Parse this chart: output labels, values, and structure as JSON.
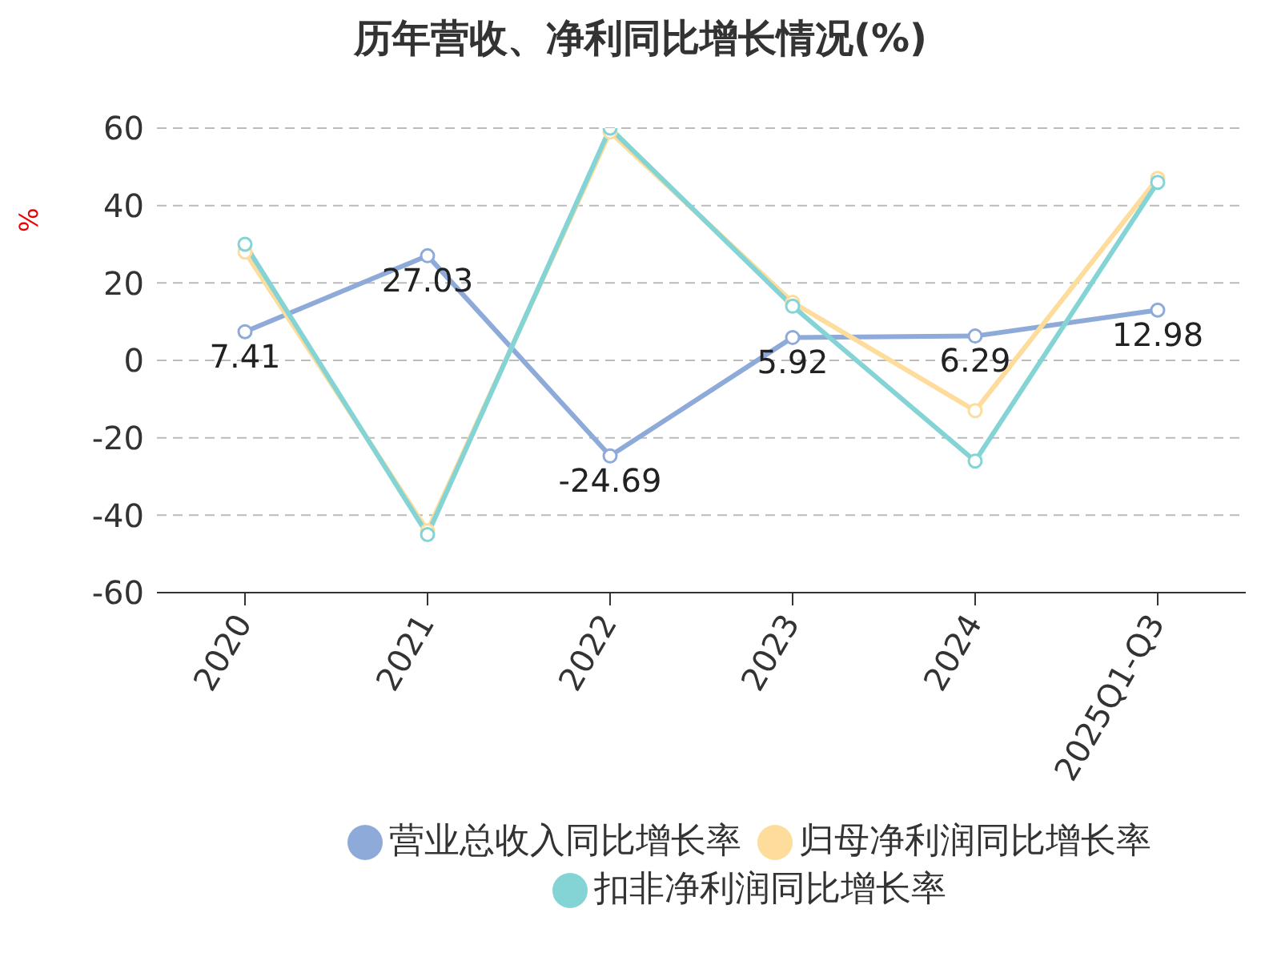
{
  "chart_data": {
    "type": "line",
    "title": "历年营收、净利同比增长情况(%)",
    "ylabel": "%",
    "categories": [
      "2020",
      "2021",
      "2022",
      "2023",
      "2024",
      "2025Q1-Q3"
    ],
    "series": [
      {
        "name": "营业总收入同比增长率",
        "color": "#8eaad8",
        "values": [
          7.41,
          27.03,
          -24.69,
          5.92,
          6.29,
          12.98
        ],
        "value_labels": [
          "7.41",
          "27.03",
          "-24.69",
          "5.92",
          "6.29",
          "12.98"
        ]
      },
      {
        "name": "归母净利润同比增长率",
        "color": "#fddc9c",
        "values": [
          28,
          -44,
          59,
          15,
          -13,
          47
        ]
      },
      {
        "name": "扣非净利润同比增长率",
        "color": "#84d4d5",
        "values": [
          30,
          -45,
          60,
          14,
          -26,
          46
        ]
      }
    ],
    "ylim": [
      -60,
      60
    ],
    "yticks": [
      -60,
      -40,
      -20,
      0,
      20,
      40,
      60
    ],
    "grid": "y",
    "legend": "bottom",
    "marker": "circle",
    "line_style": "solid"
  }
}
